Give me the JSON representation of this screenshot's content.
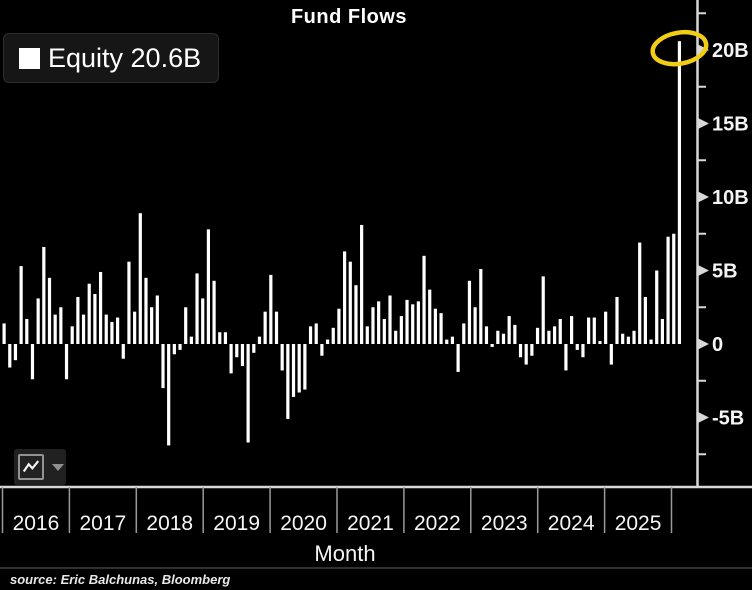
{
  "window": {
    "title": "Fund Flows"
  },
  "legend": {
    "label": "Equity 20.6B",
    "series_name": "Equity",
    "latest_value": "20.6B",
    "swatch_color": "#ffffff"
  },
  "axes": {
    "y_tick_labels": [
      "20B",
      "15B",
      "10B",
      "5B",
      "0",
      "-5B"
    ],
    "y_tick_values": [
      20,
      15,
      10,
      5,
      0,
      -5
    ],
    "x_year_labels": [
      "2016",
      "2017",
      "2018",
      "2019",
      "2020",
      "2021",
      "2022",
      "2023",
      "2024",
      "2025"
    ],
    "x_title": "Month"
  },
  "annotation": {
    "shape": "ellipse",
    "color": "#f1ce15",
    "circled_value": 20.6,
    "circled_month": "last bar (2025)"
  },
  "toolbar": {
    "icons": [
      "line-chart-icon",
      "caret-down-icon"
    ]
  },
  "source_line": "source: Eric Balchunas, Bloomberg",
  "colors": {
    "background": "#000000",
    "bars": "#ffffff",
    "axis": "#d8d8d8",
    "tick_text": "#f5f5f5",
    "year_tick": "#9a9a9a",
    "annotation": "#f1ce15"
  },
  "chart_data": {
    "type": "bar",
    "title": "Fund Flows",
    "xlabel": "Month",
    "ylabel": "",
    "unit": "USD billions",
    "ylim": [
      -8.5,
      23.5
    ],
    "yticks": [
      20,
      15,
      10,
      5,
      0,
      -5
    ],
    "minor_tick_step": 2.5,
    "grid": false,
    "legend_position": "top-left",
    "years": [
      "2016",
      "2017",
      "2018",
      "2019",
      "2020",
      "2021",
      "2022",
      "2023",
      "2024",
      "2025"
    ],
    "values_by_year": {
      "2016": [
        1.4,
        -1.6,
        -1.1,
        5.3,
        1.7,
        -2.4,
        3.1,
        6.6,
        4.5,
        2.0,
        2.5,
        -2.4
      ],
      "2017": [
        1.2,
        3.2,
        2.0,
        4.1,
        3.4,
        4.9,
        2.0,
        1.5,
        1.8,
        -1.0,
        5.6,
        2.2
      ],
      "2018": [
        8.9,
        4.5,
        2.5,
        3.3,
        -3.0,
        -6.9,
        -0.7,
        -0.4,
        2.5,
        0.5,
        4.8,
        3.1
      ],
      "2019": [
        7.8,
        4.3,
        0.8,
        0.8,
        -2.0,
        -0.9,
        -1.5,
        -6.7,
        -0.6,
        0.5,
        2.2,
        4.7
      ],
      "2020": [
        2.2,
        -1.8,
        -5.1,
        -3.6,
        -3.3,
        -3.1,
        1.2,
        1.4,
        -0.8,
        0.3,
        1.1,
        2.4
      ],
      "2021": [
        6.3,
        5.6,
        4.0,
        8.1,
        1.2,
        2.5,
        2.9,
        1.7,
        3.3,
        0.9,
        1.9,
        3.0
      ],
      "2022": [
        2.7,
        2.9,
        6.0,
        3.7,
        2.4,
        2.1,
        0.3,
        0.5,
        -1.9,
        1.4,
        4.3,
        2.5
      ],
      "2023": [
        5.1,
        1.2,
        -0.2,
        0.9,
        0.7,
        1.9,
        1.3,
        -0.9,
        -1.4,
        -0.8,
        1.1,
        4.6
      ],
      "2024": [
        0.9,
        1.2,
        1.7,
        -1.8,
        1.9,
        -0.4,
        -0.9,
        1.8,
        1.8,
        0.2,
        2.2,
        -1.4
      ],
      "2025": [
        3.2,
        0.7,
        0.5,
        0.9,
        6.9,
        3.2,
        0.3,
        5.0,
        1.7,
        7.3,
        7.5,
        20.6
      ]
    },
    "highlight": {
      "value": 20.6,
      "annotation": "yellow ellipse around final bar top"
    }
  }
}
